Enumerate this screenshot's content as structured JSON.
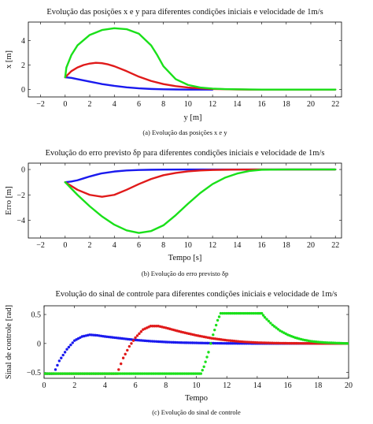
{
  "chart_data": [
    {
      "type": "line",
      "title": "Evolução das posições x e y para diferentes condições iniciais e velocidade de 1m/s",
      "caption": "(a) Evolução das posições x e y",
      "xlabel": "y [m]",
      "ylabel": "x [m]",
      "xlim": [
        -3,
        22.5
      ],
      "ylim": [
        -0.6,
        5.5
      ],
      "xticks": [
        -2,
        0,
        2,
        4,
        6,
        8,
        10,
        12,
        14,
        16,
        18,
        20,
        22
      ],
      "yticks": [
        0,
        2,
        4
      ],
      "grid": false,
      "series": [
        {
          "color": "#1a1aee",
          "x": [
            0,
            0.5,
            1,
            2,
            3,
            4,
            5,
            6,
            7,
            8,
            9,
            10,
            11,
            12
          ],
          "y": [
            1,
            0.95,
            0.85,
            0.65,
            0.45,
            0.3,
            0.18,
            0.1,
            0.05,
            0.02,
            0.01,
            0,
            0,
            0
          ]
        },
        {
          "color": "#e01a1a",
          "x": [
            0,
            0.5,
            1,
            1.5,
            2,
            2.5,
            3,
            3.5,
            4,
            5,
            6,
            7,
            8,
            9,
            10,
            11,
            12,
            13,
            14,
            15,
            22
          ],
          "y": [
            1,
            1.5,
            1.8,
            2.0,
            2.12,
            2.18,
            2.15,
            2.05,
            1.9,
            1.5,
            1.05,
            0.7,
            0.45,
            0.28,
            0.17,
            0.1,
            0.05,
            0.03,
            0.01,
            0,
            0
          ]
        },
        {
          "color": "#1ae01a",
          "x": [
            0,
            0.1,
            0.5,
            1,
            2,
            3,
            4,
            5,
            6,
            7,
            7.5,
            8,
            9,
            10,
            11,
            12,
            13,
            14,
            16,
            18,
            22
          ],
          "y": [
            1,
            1.8,
            2.8,
            3.6,
            4.45,
            4.85,
            5.0,
            4.92,
            4.55,
            3.6,
            2.8,
            1.9,
            0.85,
            0.38,
            0.17,
            0.08,
            0.04,
            0.02,
            0,
            0,
            0
          ]
        }
      ]
    },
    {
      "type": "line",
      "title": "Evolução do erro previsto δp para diferentes condições iniciais e velocidade de 1m/s",
      "caption": "(b) Evolução do erro previsto δp",
      "xlabel": "Tempo [s]",
      "ylabel": "Erro [m]",
      "xlim": [
        -3,
        22.5
      ],
      "ylim": [
        -5.4,
        0.5
      ],
      "xticks": [
        -2,
        0,
        2,
        4,
        6,
        8,
        10,
        12,
        14,
        16,
        18,
        20,
        22
      ],
      "yticks": [
        -4,
        -2,
        0
      ],
      "grid": false,
      "series": [
        {
          "color": "#1a1aee",
          "x": [
            0,
            0.5,
            1,
            1.5,
            2,
            2.5,
            3,
            4,
            5,
            6,
            7,
            8,
            10,
            12,
            14,
            16,
            22
          ],
          "y": [
            -1,
            -0.95,
            -0.85,
            -0.7,
            -0.55,
            -0.42,
            -0.3,
            -0.16,
            -0.08,
            -0.04,
            -0.02,
            -0.01,
            0,
            0,
            0,
            0,
            0
          ]
        },
        {
          "color": "#e01a1a",
          "x": [
            0,
            1,
            2,
            3,
            4,
            5,
            6,
            7,
            8,
            9,
            10,
            11,
            12,
            13,
            14,
            16,
            22
          ],
          "y": [
            -1,
            -1.6,
            -2.0,
            -2.15,
            -2.0,
            -1.6,
            -1.15,
            -0.75,
            -0.45,
            -0.27,
            -0.15,
            -0.08,
            -0.04,
            -0.02,
            -0.01,
            0,
            0
          ]
        },
        {
          "color": "#1ae01a",
          "x": [
            0,
            1,
            2,
            3,
            4,
            5,
            6,
            7,
            8,
            9,
            10,
            11,
            12,
            13,
            14,
            15,
            16,
            18,
            22
          ],
          "y": [
            -1,
            -2.0,
            -2.9,
            -3.7,
            -4.35,
            -4.8,
            -5.0,
            -4.85,
            -4.4,
            -3.6,
            -2.7,
            -1.85,
            -1.15,
            -0.65,
            -0.32,
            -0.12,
            -0.02,
            0,
            0
          ]
        }
      ]
    },
    {
      "type": "scatter",
      "title": "Evolução do sinal de controle para diferentes condições iniciais e velocidade de 1m/s",
      "caption": "(c) Evolução do sinal de controle",
      "xlabel": "Tempo",
      "ylabel": "Sinal de controle [rad]",
      "xlim": [
        0,
        20
      ],
      "ylim": [
        -0.6,
        0.65
      ],
      "xticks": [
        0,
        2,
        4,
        6,
        8,
        10,
        12,
        14,
        16,
        18,
        20
      ],
      "yticks": [
        -0.5,
        0,
        0.5
      ],
      "grid": false,
      "series": [
        {
          "color": "#1a1aee",
          "x": [
            0,
            0.6,
            0.75,
            1,
            1.5,
            2,
            2.5,
            3,
            3.5,
            4,
            5,
            6,
            7,
            8,
            9,
            10,
            11,
            12,
            14,
            16,
            18,
            20
          ],
          "y": [
            -0.52,
            -0.52,
            -0.45,
            -0.3,
            -0.1,
            0.05,
            0.12,
            0.15,
            0.14,
            0.12,
            0.09,
            0.06,
            0.04,
            0.025,
            0.015,
            0.01,
            0.005,
            0.002,
            0,
            0,
            0,
            0
          ]
        },
        {
          "color": "#e01a1a",
          "x": [
            0,
            4.8,
            4.9,
            5.2,
            5.6,
            6,
            6.5,
            7,
            7.5,
            8,
            9,
            10,
            11,
            12,
            13,
            14,
            15,
            16,
            18,
            20
          ],
          "y": [
            -0.52,
            -0.52,
            -0.45,
            -0.25,
            -0.05,
            0.1,
            0.24,
            0.3,
            0.3,
            0.27,
            0.2,
            0.14,
            0.09,
            0.055,
            0.03,
            0.015,
            0.008,
            0.004,
            0,
            0
          ]
        },
        {
          "color": "#1ae01a",
          "x": [
            0,
            10.3,
            10.5,
            10.8,
            11.1,
            11.4,
            11.6,
            12,
            13,
            14,
            14.3,
            14.5,
            15,
            15.5,
            16,
            16.5,
            17,
            17.5,
            18,
            18.5,
            19,
            19.5,
            20
          ],
          "y": [
            -0.52,
            -0.52,
            -0.4,
            -0.15,
            0.15,
            0.4,
            0.52,
            0.52,
            0.52,
            0.52,
            0.52,
            0.45,
            0.32,
            0.22,
            0.15,
            0.1,
            0.065,
            0.04,
            0.025,
            0.015,
            0.01,
            0.005,
            0
          ]
        }
      ]
    }
  ]
}
